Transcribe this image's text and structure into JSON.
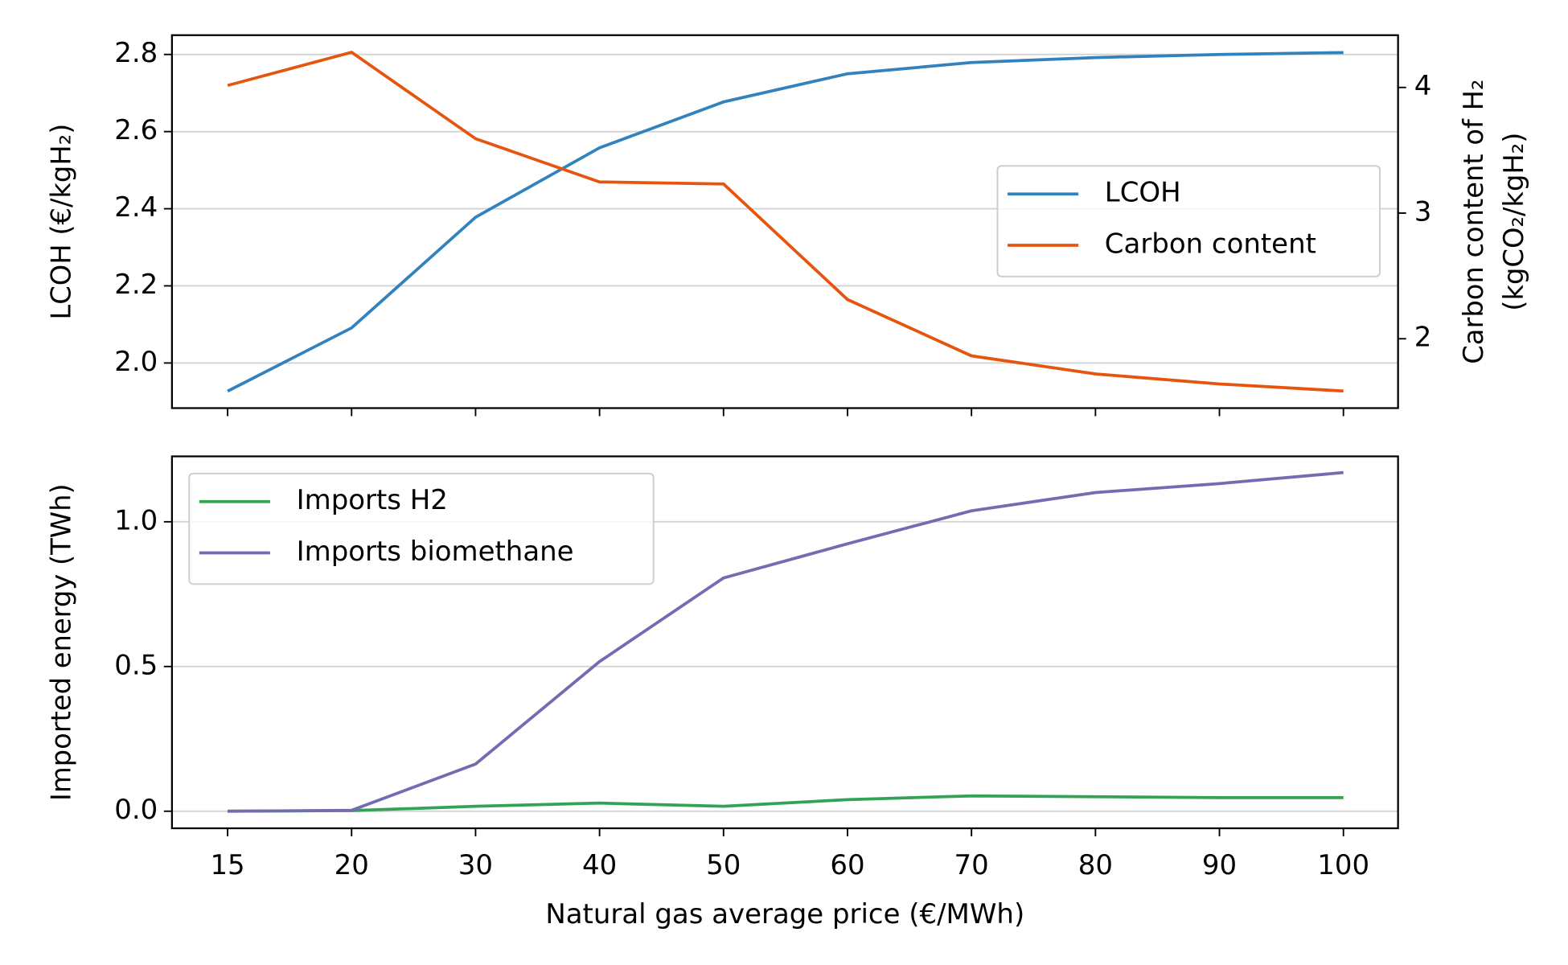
{
  "chart_data": [
    {
      "type": "line",
      "ylabel": "LCOH (€/kgH₂)",
      "y2label": [
        "Carbon content of H₂",
        "(kgCO₂/kgH₂)"
      ],
      "categories": [
        "15",
        "20",
        "30",
        "40",
        "50",
        "60",
        "70",
        "80",
        "90",
        "100"
      ],
      "series": [
        {
          "name": "LCOH",
          "color": "#3182bd",
          "values": [
            1.927,
            2.091,
            2.378,
            2.558,
            2.677,
            2.75,
            2.779,
            2.792,
            2.8,
            2.805
          ]
        },
        {
          "name": "Carbon content",
          "color": "#e6550d",
          "axis": "y2",
          "values": [
            4.016,
            4.28,
            3.592,
            3.248,
            3.232,
            2.312,
            1.864,
            1.72,
            1.64,
            1.584
          ]
        }
      ],
      "ylim": [
        1.883,
        2.85
      ],
      "yticks": [
        {
          "value": 2,
          "label": "2.0"
        },
        2.2,
        2.4,
        2.6,
        2.8
      ],
      "y2lim": [
        1.448,
        4.416
      ],
      "y2ticks": [
        2,
        3,
        4
      ],
      "grid": true,
      "legend": "center right"
    },
    {
      "type": "line",
      "xlabel": "Natural gas average price (€/MWh)",
      "ylabel": "Imported energy (TWh)",
      "categories": [
        "15",
        "20",
        "30",
        "40",
        "50",
        "60",
        "70",
        "80",
        "90",
        "100"
      ],
      "series": [
        {
          "name": "Imports H2",
          "color": "#31a354",
          "values": [
            0,
            0.002,
            0.017,
            0.028,
            0.017,
            0.04,
            0.053,
            0.05,
            0.047,
            0.047
          ]
        },
        {
          "name": "Imports biomethane",
          "color": "#756bb1",
          "values": [
            0,
            0.003,
            0.163,
            0.517,
            0.806,
            0.924,
            1.038,
            1.101,
            1.132,
            1.17
          ]
        }
      ],
      "ylim": [
        -0.059,
        1.226
      ],
      "yticks": [
        {
          "value": 0,
          "label": "0.0"
        },
        0.5,
        {
          "value": 1,
          "label": "1.0"
        }
      ],
      "grid": true,
      "legend": "upper left"
    }
  ]
}
